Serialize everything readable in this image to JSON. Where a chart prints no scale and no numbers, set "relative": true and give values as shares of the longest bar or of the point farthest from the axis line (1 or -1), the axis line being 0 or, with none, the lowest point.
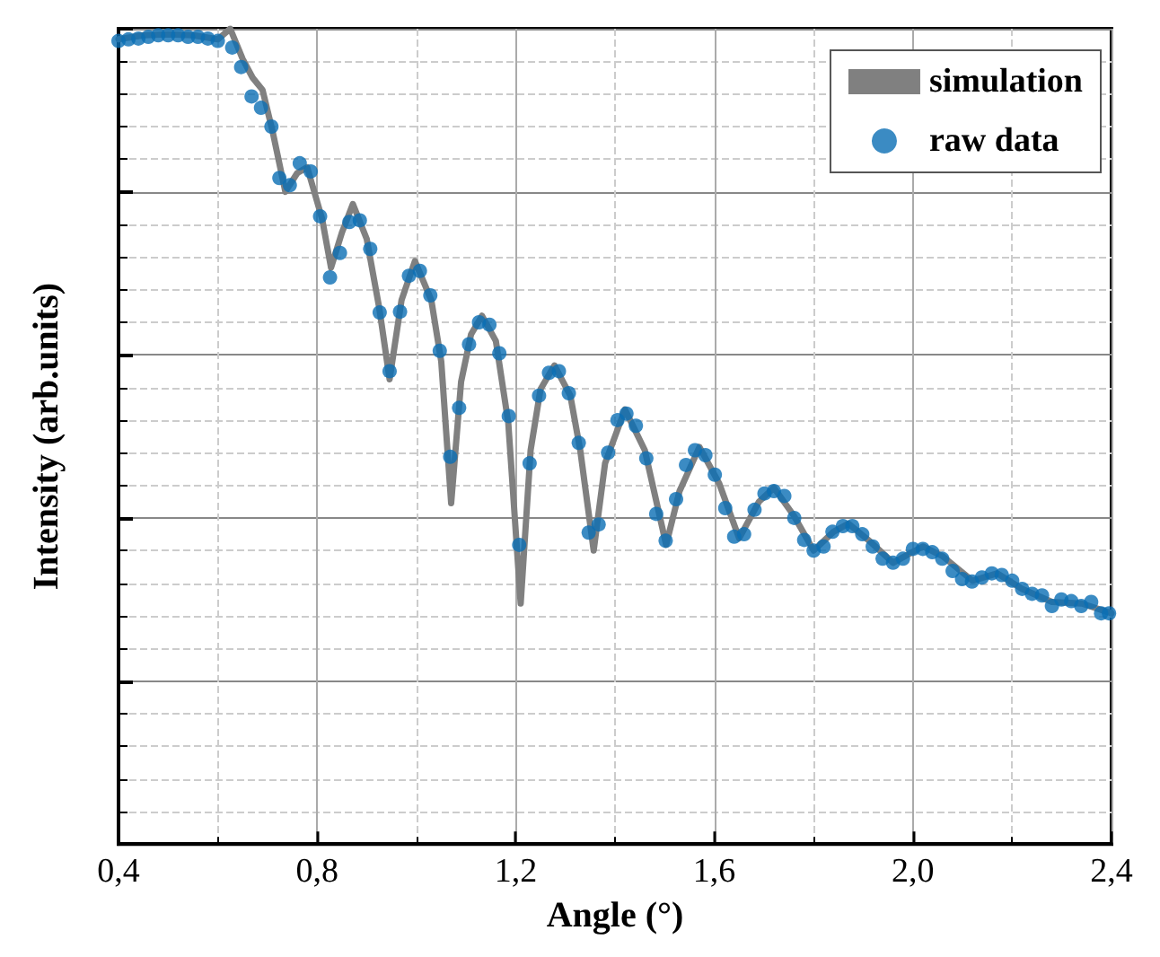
{
  "chart_data": {
    "type": "line",
    "relative": true,
    "grid": true,
    "legend": "top right",
    "xlabel": "Angle (°)",
    "ylabel": "Intensity (arb.units)",
    "xlim": [
      0.4,
      2.4
    ],
    "xticks": [
      {
        "value": 0.4,
        "label": "0,4"
      },
      {
        "value": 0.8,
        "label": "0,8"
      },
      {
        "value": 1.2,
        "label": "1,2"
      },
      {
        "value": 1.6,
        "label": "1,6"
      },
      {
        "value": 2.0,
        "label": "2,0"
      },
      {
        "value": 2.4,
        "label": "2,4"
      }
    ],
    "series": [
      {
        "name": "simulation",
        "color": "#808080",
        "marker": "none",
        "x": [
          0.4,
          0.45,
          0.5,
          0.55,
          0.6,
          0.625,
          0.65,
          0.67,
          0.69,
          0.71,
          0.736,
          0.76,
          0.78,
          0.81,
          0.828,
          0.85,
          0.872,
          0.9,
          0.925,
          0.946,
          0.97,
          0.997,
          1.03,
          1.05,
          1.07,
          1.09,
          1.11,
          1.132,
          1.16,
          1.185,
          1.21,
          1.23,
          1.25,
          1.278,
          1.31,
          1.33,
          1.357,
          1.38,
          1.42,
          1.46,
          1.503,
          1.53,
          1.57,
          1.61,
          1.65,
          1.69,
          1.72,
          1.76,
          1.8,
          1.84,
          1.87,
          1.91,
          1.96,
          2.02,
          2.06,
          2.12,
          2.17,
          2.22,
          2.28,
          2.34,
          2.4
        ],
        "values": [
          0.987,
          0.992,
          0.993,
          0.992,
          0.987,
          1,
          0.963,
          0.94,
          0.925,
          0.875,
          0.8,
          0.823,
          0.83,
          0.767,
          0.707,
          0.75,
          0.785,
          0.742,
          0.658,
          0.57,
          0.667,
          0.715,
          0.667,
          0.592,
          0.418,
          0.567,
          0.625,
          0.648,
          0.617,
          0.517,
          0.295,
          0.483,
          0.558,
          0.587,
          0.55,
          0.483,
          0.36,
          0.467,
          0.533,
          0.483,
          0.367,
          0.433,
          0.487,
          0.442,
          0.375,
          0.42,
          0.437,
          0.403,
          0.36,
          0.383,
          0.393,
          0.373,
          0.345,
          0.365,
          0.353,
          0.323,
          0.332,
          0.313,
          0.297,
          0.295,
          0.283
        ]
      },
      {
        "name": "raw data",
        "type": "scatter",
        "color": "#0a6eb4",
        "marker": "circle",
        "x": [
          0.4,
          0.42,
          0.44,
          0.46,
          0.48,
          0.5,
          0.52,
          0.54,
          0.56,
          0.58,
          0.6,
          0.629,
          0.647,
          0.668,
          0.687,
          0.708,
          0.724,
          0.745,
          0.765,
          0.787,
          0.806,
          0.826,
          0.846,
          0.865,
          0.886,
          0.907,
          0.926,
          0.946,
          0.967,
          0.985,
          1.007,
          1.028,
          1.047,
          1.068,
          1.086,
          1.106,
          1.126,
          1.147,
          1.167,
          1.186,
          1.207,
          1.228,
          1.247,
          1.267,
          1.287,
          1.307,
          1.327,
          1.347,
          1.367,
          1.386,
          1.405,
          1.423,
          1.442,
          1.463,
          1.483,
          1.502,
          1.523,
          1.543,
          1.561,
          1.582,
          1.601,
          1.622,
          1.64,
          1.66,
          1.681,
          1.701,
          1.72,
          1.741,
          1.761,
          1.781,
          1.8,
          1.82,
          1.838,
          1.859,
          1.878,
          1.898,
          1.919,
          1.939,
          1.96,
          1.98,
          2.0,
          2.02,
          2.039,
          2.059,
          2.08,
          2.099,
          2.119,
          2.139,
          2.159,
          2.179,
          2.2,
          2.22,
          2.24,
          2.26,
          2.28,
          2.299,
          2.319,
          2.339,
          2.359,
          2.379,
          2.395
        ],
        "values": [
          0.985,
          0.987,
          0.988,
          0.99,
          0.992,
          0.992,
          0.992,
          0.99,
          0.99,
          0.988,
          0.985,
          0.977,
          0.953,
          0.917,
          0.903,
          0.88,
          0.817,
          0.808,
          0.835,
          0.825,
          0.77,
          0.695,
          0.725,
          0.763,
          0.765,
          0.73,
          0.652,
          0.58,
          0.653,
          0.697,
          0.703,
          0.673,
          0.605,
          0.475,
          0.535,
          0.613,
          0.64,
          0.637,
          0.602,
          0.525,
          0.367,
          0.467,
          0.55,
          0.578,
          0.58,
          0.553,
          0.492,
          0.382,
          0.392,
          0.48,
          0.52,
          0.528,
          0.513,
          0.473,
          0.405,
          0.372,
          0.423,
          0.465,
          0.483,
          0.477,
          0.453,
          0.412,
          0.377,
          0.38,
          0.41,
          0.43,
          0.433,
          0.427,
          0.4,
          0.373,
          0.36,
          0.365,
          0.383,
          0.39,
          0.39,
          0.38,
          0.365,
          0.35,
          0.345,
          0.35,
          0.362,
          0.362,
          0.358,
          0.35,
          0.335,
          0.325,
          0.322,
          0.327,
          0.332,
          0.33,
          0.323,
          0.313,
          0.307,
          0.305,
          0.292,
          0.3,
          0.298,
          0.292,
          0.297,
          0.283,
          0.283
        ]
      }
    ]
  }
}
